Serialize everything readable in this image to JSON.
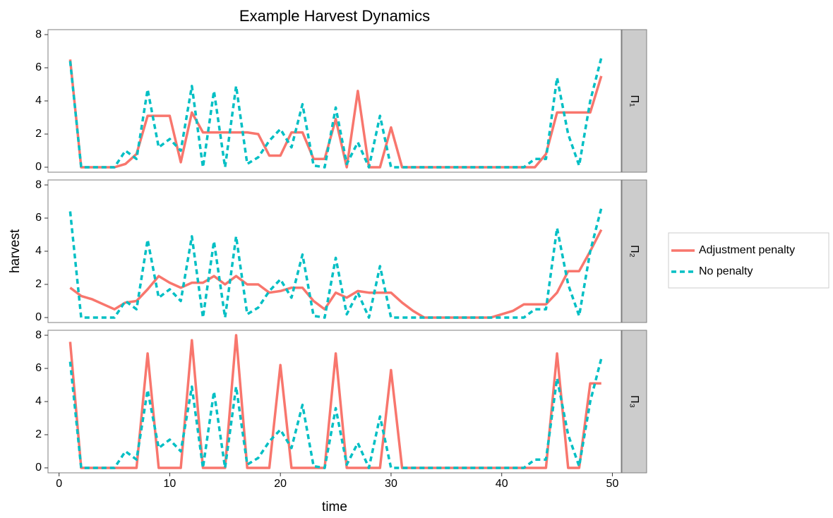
{
  "chart_data": {
    "type": "line",
    "title": "Example Harvest Dynamics",
    "x_label": "time",
    "y_label": "harvest",
    "x": [
      1,
      2,
      3,
      4,
      5,
      6,
      7,
      8,
      9,
      10,
      11,
      12,
      13,
      14,
      15,
      16,
      17,
      18,
      19,
      20,
      21,
      22,
      23,
      24,
      25,
      26,
      27,
      28,
      29,
      30,
      31,
      32,
      33,
      34,
      35,
      36,
      37,
      38,
      39,
      40,
      41,
      42,
      43,
      44,
      45,
      46,
      47,
      48,
      49
    ],
    "xlim": [
      -1.0,
      50.8
    ],
    "xticks": [
      0,
      10,
      20,
      30,
      40,
      50
    ],
    "ylim": [
      -0.3,
      8.3
    ],
    "yticks": [
      0,
      2,
      4,
      6,
      8
    ],
    "panels": [
      {
        "label": "Π₁",
        "series": [
          {
            "name": "Adjustment penalty",
            "color": "#F8766D",
            "values": [
              6.5,
              0,
              0,
              0,
              0,
              0.2,
              0.8,
              3.1,
              3.1,
              3.1,
              0.3,
              3.3,
              2.1,
              2.1,
              2.1,
              2.1,
              2.1,
              2.0,
              0.7,
              0.7,
              2.1,
              2.1,
              0.5,
              0.5,
              2.9,
              0,
              4.6,
              0,
              0,
              2.4,
              0,
              0,
              0,
              0,
              0,
              0,
              0,
              0,
              0,
              0,
              0,
              0,
              0,
              0.8,
              3.3,
              3.3,
              3.3,
              3.3,
              5.5
            ]
          },
          {
            "name": "No penalty",
            "color": "#00BFC4",
            "values": [
              6.4,
              0,
              0,
              0,
              0,
              1.0,
              0.5,
              4.7,
              1.2,
              1.7,
              1.0,
              4.9,
              0,
              4.6,
              0,
              4.9,
              0.2,
              0.6,
              1.6,
              2.3,
              1.2,
              3.8,
              0.1,
              0,
              3.6,
              0.2,
              1.5,
              0,
              3.1,
              0,
              0,
              0,
              0,
              0,
              0,
              0,
              0,
              0,
              0,
              0,
              0,
              0,
              0.5,
              0.5,
              5.4,
              2.0,
              0.1,
              4.0,
              6.6
            ]
          }
        ]
      },
      {
        "label": "Π₂",
        "series": [
          {
            "name": "Adjustment penalty",
            "color": "#F8766D",
            "values": [
              1.8,
              1.3,
              1.1,
              0.8,
              0.5,
              0.9,
              1.0,
              1.7,
              2.5,
              2.1,
              1.8,
              2.1,
              2.1,
              2.5,
              2.0,
              2.5,
              2.0,
              2.0,
              1.5,
              1.6,
              1.8,
              1.8,
              1.0,
              0.5,
              1.5,
              1.2,
              1.6,
              1.5,
              1.5,
              1.5,
              0.9,
              0.4,
              0,
              0,
              0,
              0,
              0,
              0,
              0,
              0.2,
              0.4,
              0.8,
              0.8,
              0.8,
              1.5,
              2.8,
              2.8,
              4.0,
              5.3
            ]
          },
          {
            "name": "No penalty",
            "color": "#00BFC4",
            "values": [
              6.4,
              0,
              0,
              0,
              0,
              1.0,
              0.5,
              4.7,
              1.2,
              1.7,
              1.0,
              4.9,
              0,
              4.6,
              0,
              4.9,
              0.2,
              0.6,
              1.6,
              2.3,
              1.2,
              3.8,
              0.1,
              0,
              3.6,
              0.2,
              1.5,
              0,
              3.1,
              0,
              0,
              0,
              0,
              0,
              0,
              0,
              0,
              0,
              0,
              0,
              0,
              0,
              0.5,
              0.5,
              5.4,
              2.0,
              0.1,
              4.0,
              6.6
            ]
          }
        ]
      },
      {
        "label": "Π₃",
        "series": [
          {
            "name": "Adjustment penalty",
            "color": "#F8766D",
            "values": [
              7.6,
              0,
              0,
              0,
              0,
              0,
              0,
              6.9,
              0,
              0,
              0,
              7.7,
              0,
              0,
              0,
              8.0,
              0,
              0,
              0,
              6.2,
              0,
              0,
              0,
              0,
              6.9,
              0,
              0,
              0,
              0,
              5.9,
              0,
              0,
              0,
              0,
              0,
              0,
              0,
              0,
              0,
              0,
              0,
              0,
              0,
              0,
              6.9,
              0,
              0,
              5.1,
              5.1
            ]
          },
          {
            "name": "No penalty",
            "color": "#00BFC4",
            "values": [
              6.4,
              0,
              0,
              0,
              0,
              1.0,
              0.5,
              4.7,
              1.2,
              1.7,
              1.0,
              4.9,
              0,
              4.6,
              0,
              4.9,
              0.2,
              0.6,
              1.6,
              2.3,
              1.2,
              3.8,
              0.1,
              0,
              3.6,
              0.2,
              1.5,
              0,
              3.1,
              0,
              0,
              0,
              0,
              0,
              0,
              0,
              0,
              0,
              0,
              0,
              0,
              0,
              0.5,
              0.5,
              5.4,
              2.0,
              0.1,
              4.0,
              6.6
            ]
          }
        ]
      }
    ]
  }
}
